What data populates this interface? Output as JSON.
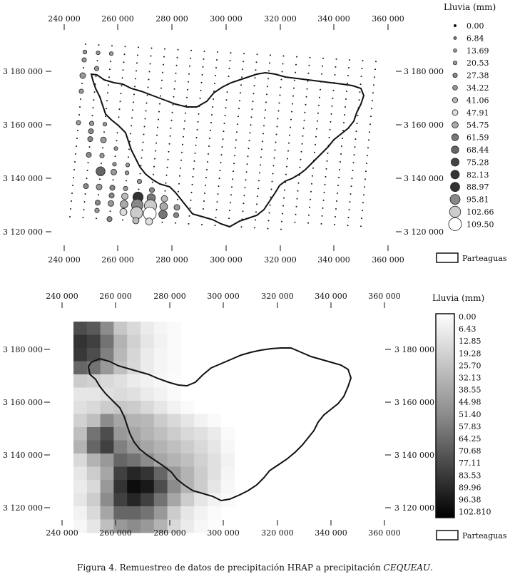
{
  "map_top": {
    "x_ticks": [
      "240 000",
      "260 000",
      "280 000",
      "300 000",
      "320 000",
      "340 000",
      "360 000"
    ],
    "y_ticks": [
      "3 180 000",
      "3 160 000",
      "3 140 000",
      "3 120 000"
    ],
    "legend_title": "Lluvia (mm)",
    "legend_values": [
      "0.00",
      "6.84",
      "13.69",
      "20.53",
      "27.38",
      "34.22",
      "41.06",
      "47.91",
      "54.75",
      "61.59",
      "68.44",
      "75.28",
      "82.13",
      "88.97",
      "95.81",
      "102.66",
      "109.50"
    ],
    "boundary_label": "Parteaguas"
  },
  "map_bottom": {
    "x_ticks": [
      "240 000",
      "260 000",
      "280 000",
      "300 000",
      "320 000",
      "340 000",
      "360 000"
    ],
    "y_ticks": [
      "3 180 000",
      "3 160 000",
      "3 140 000",
      "3 120 000"
    ],
    "legend_title": "Lluvia (mm)",
    "legend_values": [
      "0.00",
      "6.43",
      "12.85",
      "19.28",
      "25.70",
      "32.13",
      "38.55",
      "44.98",
      "51.40",
      "57.83",
      "64.25",
      "70.68",
      "77.11",
      "83.53",
      "89.96",
      "96.38",
      "102.810"
    ],
    "boundary_label": "Parteaguas"
  },
  "caption": {
    "main": "Figura 4. Remuestreo de datos de precipitación HRAP a precipitación ",
    "italic": "CEQUEAU",
    "end": "."
  }
}
